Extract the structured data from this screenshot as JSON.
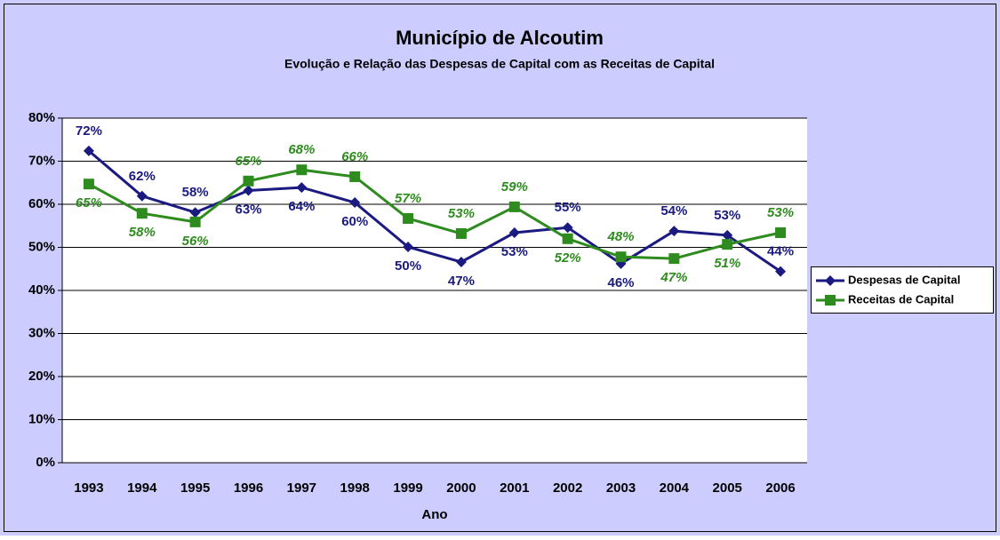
{
  "chart_data": {
    "type": "line",
    "title": "Município de Alcoutim",
    "subtitle": "Evolução e Relação das Despesas de Capital com as Receitas de Capital",
    "x_label": "Ano",
    "categories": [
      "1993",
      "1994",
      "1995",
      "1996",
      "1997",
      "1998",
      "1999",
      "2000",
      "2001",
      "2002",
      "2003",
      "2004",
      "2005",
      "2006"
    ],
    "series": [
      {
        "name": "Despesas de Capital",
        "color": "#1a1a80",
        "marker": "diamond",
        "values": [
          72.4,
          61.9,
          58.1,
          63.2,
          63.9,
          60.4,
          50.1,
          46.6,
          53.4,
          54.6,
          46.2,
          53.8,
          52.8,
          44.4
        ],
        "value_labels": [
          "72%",
          "62%",
          "58%",
          "63%",
          "64%",
          "60%",
          "50%",
          "47%",
          "53%",
          "55%",
          "46%",
          "54%",
          "53%",
          "44%"
        ]
      },
      {
        "name": "Receitas de Capital",
        "color": "#2e8b1e",
        "marker": "square",
        "values": [
          64.7,
          57.9,
          55.9,
          65.4,
          68.0,
          66.4,
          56.7,
          53.2,
          59.4,
          52.0,
          47.8,
          47.4,
          50.7,
          53.4
        ],
        "value_labels": [
          "65%",
          "58%",
          "56%",
          "65%",
          "68%",
          "66%",
          "57%",
          "53%",
          "59%",
          "52%",
          "48%",
          "47%",
          "51%",
          "53%"
        ]
      }
    ],
    "ylim": [
      0,
      80
    ],
    "yticks": [
      {
        "value": 0,
        "label": "0%"
      },
      {
        "value": 10,
        "label": "10%"
      },
      {
        "value": 20,
        "label": "20%"
      },
      {
        "value": 30,
        "label": "30%"
      },
      {
        "value": 40,
        "label": "40%"
      },
      {
        "value": 50,
        "label": "50%"
      },
      {
        "value": 60,
        "label": "60%"
      },
      {
        "value": 70,
        "label": "70%"
      },
      {
        "value": 80,
        "label": "80%"
      }
    ],
    "grid": true,
    "legend": "right"
  }
}
